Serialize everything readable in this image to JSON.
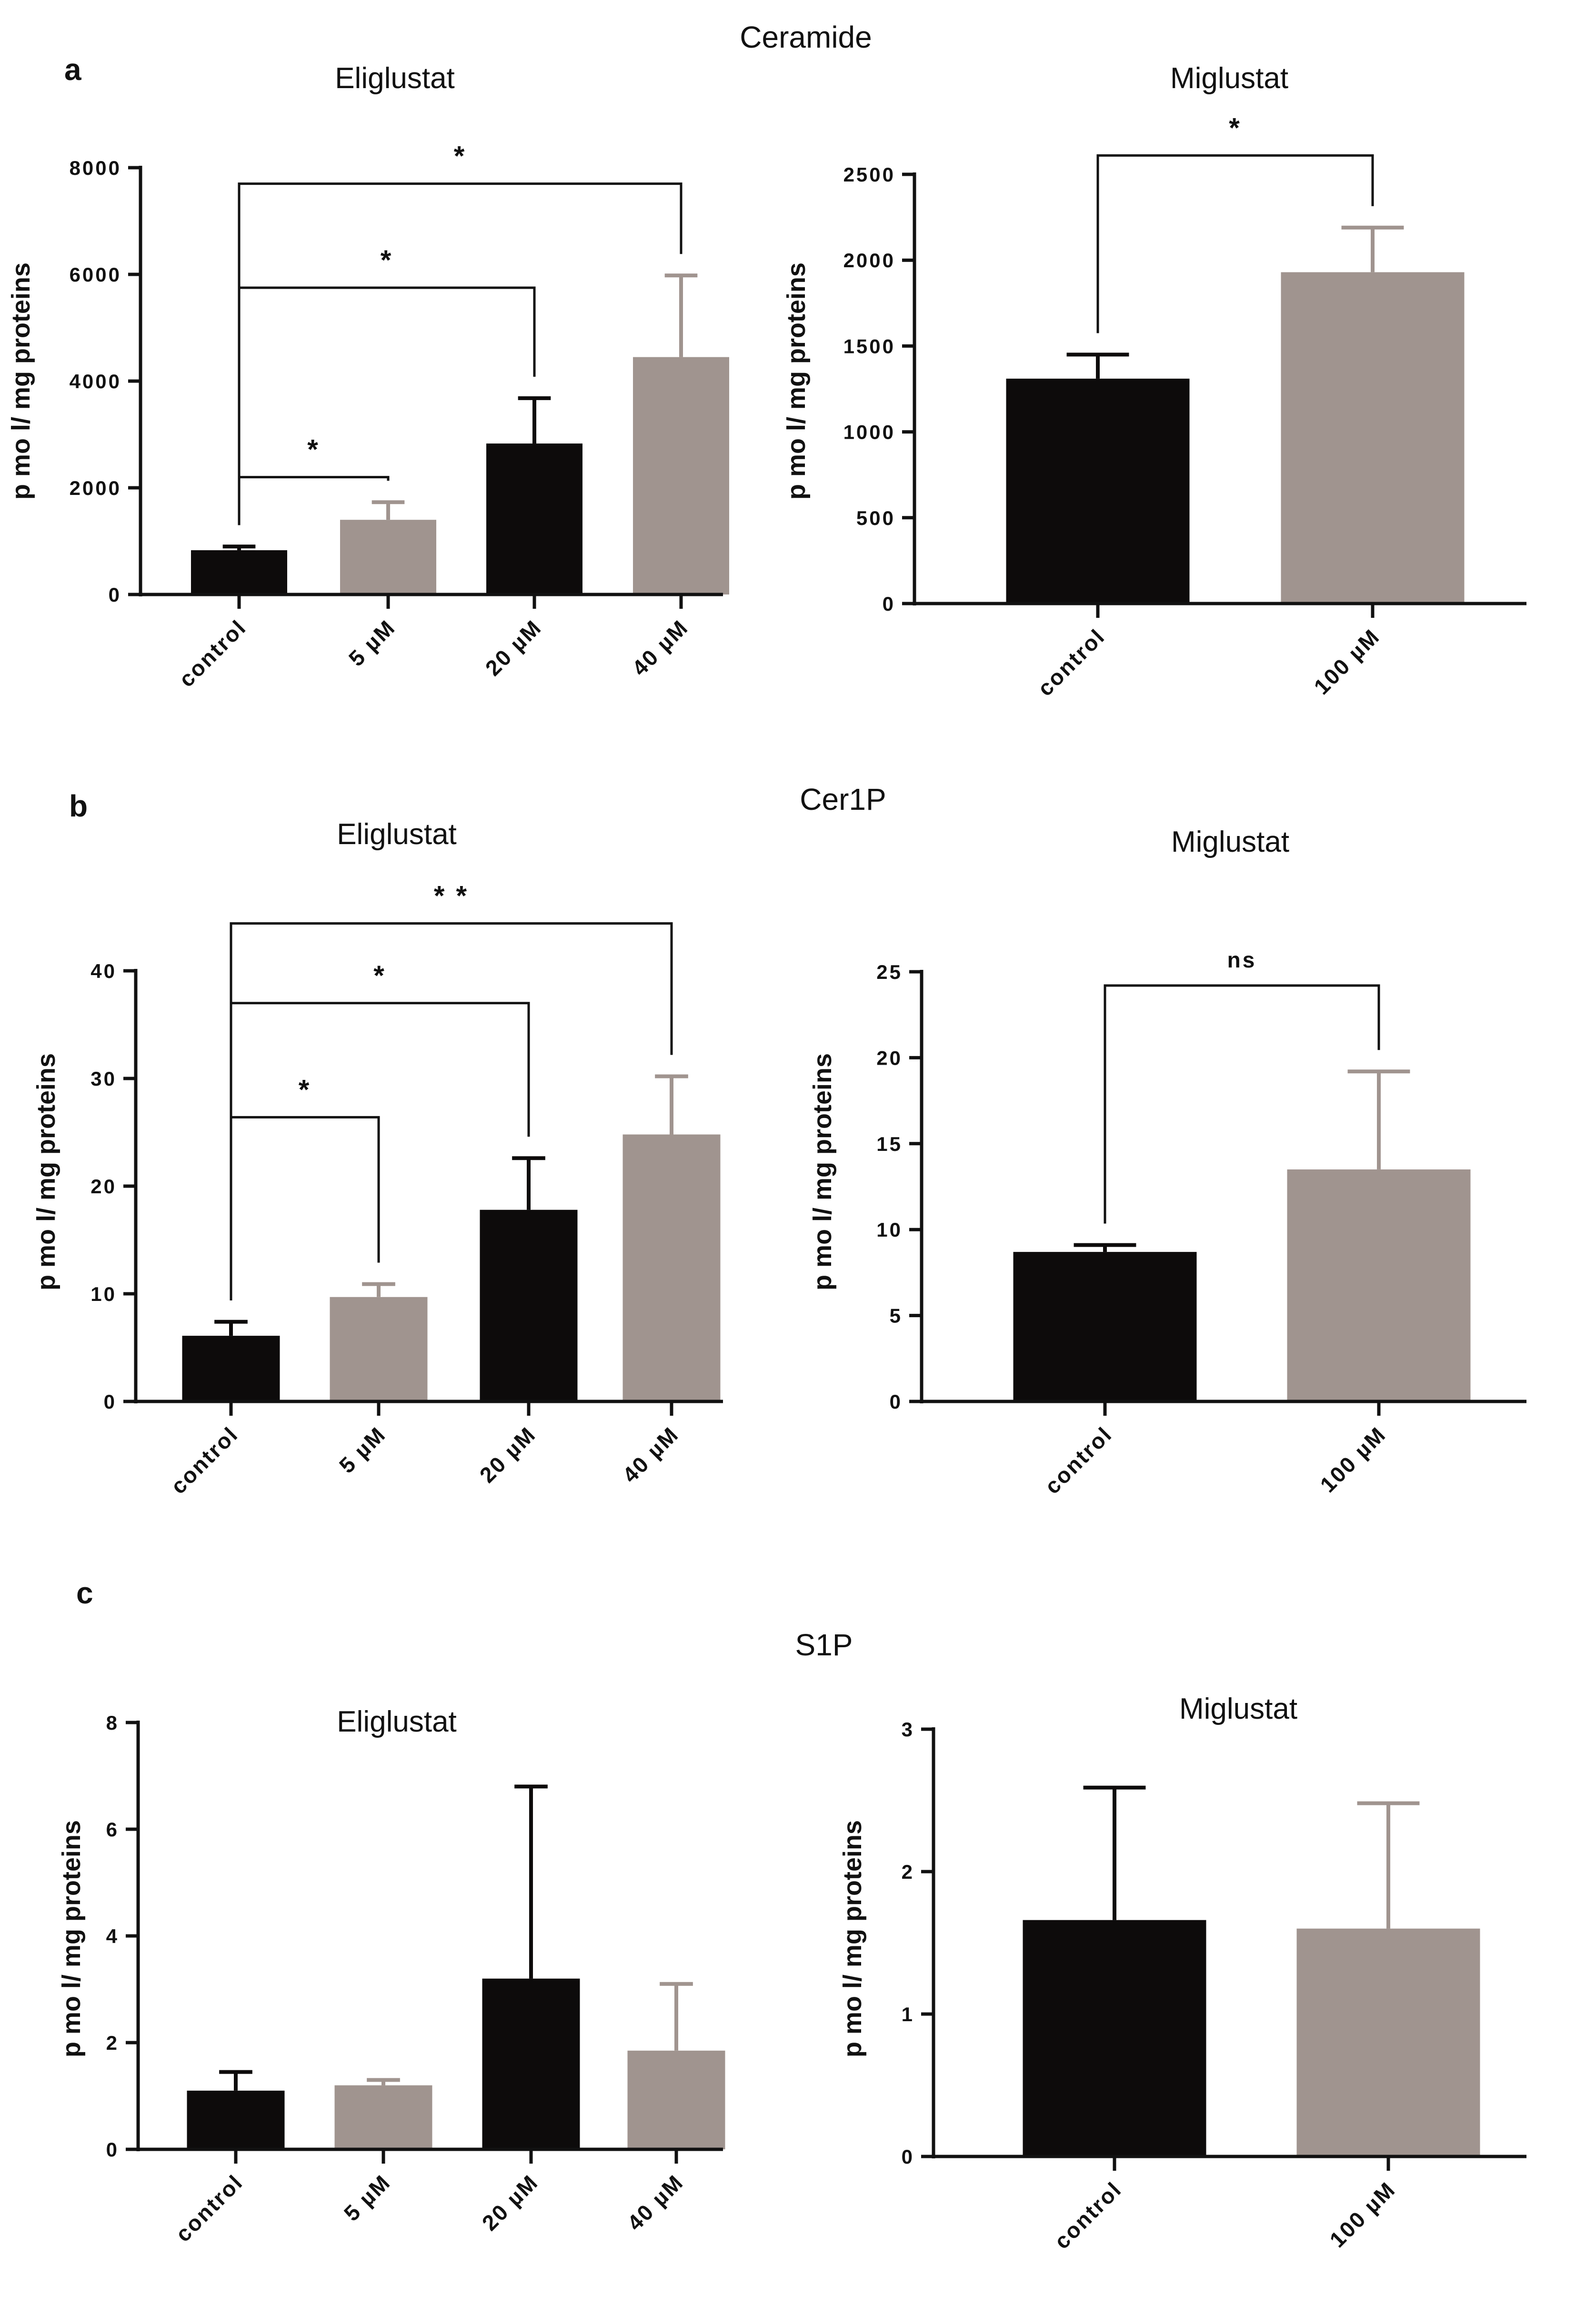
{
  "panels": [
    {
      "label": "a",
      "title": "Ceramide"
    },
    {
      "label": "b",
      "title": "Cer1P"
    },
    {
      "label": "c",
      "title": "S1P"
    }
  ],
  "colors": {
    "dark": "#0d0b0b",
    "grey": "#a0948f",
    "axis": "#111111"
  },
  "chart_data": [
    {
      "type": "bar",
      "title": "Eliglustat",
      "ylabel": "p mo l/ mg proteins",
      "categories": [
        "control",
        "5 µM",
        "20 µM",
        "40 µM"
      ],
      "values": [
        830,
        1400,
        2830,
        4450
      ],
      "errors": [
        70,
        330,
        850,
        1530
      ],
      "bar_colors": [
        "dark",
        "grey",
        "dark",
        "grey"
      ],
      "ylim": [
        0,
        8000
      ],
      "yticks": [
        {
          "v": 0,
          "l": "0"
        },
        {
          "v": 2000,
          "l": "2000"
        },
        {
          "v": 4000,
          "l": "4000"
        },
        {
          "v": 6000,
          "l": "6000"
        },
        {
          "v": 8000,
          "l": "8000"
        }
      ],
      "significance": [
        {
          "from": 0,
          "to": 1,
          "label": "*",
          "level": 2200
        },
        {
          "from": 0,
          "to": 2,
          "label": "*",
          "level": 5750
        },
        {
          "from": 0,
          "to": 3,
          "label": "*",
          "level": 7700
        }
      ]
    },
    {
      "type": "bar",
      "title": "Miglustat",
      "ylabel": "p mo l/ mg proteins",
      "categories": [
        "control",
        "100 µM"
      ],
      "values": [
        1310,
        1930
      ],
      "errors": [
        140,
        260
      ],
      "bar_colors": [
        "dark",
        "grey"
      ],
      "ylim": [
        0,
        2500
      ],
      "yticks": [
        {
          "v": 0,
          "l": "0"
        },
        {
          "v": 500,
          "l": "500"
        },
        {
          "v": 1000,
          "l": "1000"
        },
        {
          "v": 1500,
          "l": "1500"
        },
        {
          "v": 2000,
          "l": "2000"
        },
        {
          "v": 2500,
          "l": "2500"
        }
      ],
      "significance": [
        {
          "from": 0,
          "to": 1,
          "label": "*",
          "level": 2610
        }
      ]
    },
    {
      "type": "bar",
      "title": "Eliglustat",
      "ylabel": "p mo l/ mg proteins",
      "categories": [
        "control",
        "5 µM",
        "20 µM",
        "40 µM"
      ],
      "values": [
        6.1,
        9.7,
        17.8,
        24.8
      ],
      "errors": [
        1.3,
        1.2,
        4.8,
        5.4
      ],
      "bar_colors": [
        "dark",
        "grey",
        "dark",
        "grey"
      ],
      "ylim": [
        0,
        40
      ],
      "yticks": [
        {
          "v": 0,
          "l": "0"
        },
        {
          "v": 10,
          "l": "10"
        },
        {
          "v": 20,
          "l": "20"
        },
        {
          "v": 30,
          "l": "30"
        },
        {
          "v": 40,
          "l": "40"
        }
      ],
      "significance": [
        {
          "from": 0,
          "to": 1,
          "label": "*",
          "level": 26.4
        },
        {
          "from": 0,
          "to": 2,
          "label": "*",
          "level": 37.0
        },
        {
          "from": 0,
          "to": 3,
          "label": "* *",
          "level": 44.4
        }
      ]
    },
    {
      "type": "bar",
      "title": "Miglustat",
      "ylabel": "p mo l/ mg proteins",
      "categories": [
        "control",
        "100 µM"
      ],
      "values": [
        8.7,
        13.5
      ],
      "errors": [
        0.4,
        5.7
      ],
      "bar_colors": [
        "dark",
        "grey"
      ],
      "ylim": [
        0,
        25
      ],
      "yticks": [
        {
          "v": 0,
          "l": "0"
        },
        {
          "v": 5,
          "l": "5"
        },
        {
          "v": 10,
          "l": "10"
        },
        {
          "v": 15,
          "l": "15"
        },
        {
          "v": 20,
          "l": "20"
        },
        {
          "v": 25,
          "l": "25"
        }
      ],
      "significance": [
        {
          "from": 0,
          "to": 1,
          "label": "ns",
          "level": 24.2
        }
      ]
    },
    {
      "type": "bar",
      "title": "Eliglustat",
      "ylabel": "p mo l/ mg proteins",
      "categories": [
        "control",
        "5 µM",
        "20 µM",
        "40 µM"
      ],
      "values": [
        1.1,
        1.2,
        3.2,
        1.85
      ],
      "errors": [
        0.35,
        0.1,
        3.6,
        1.25
      ],
      "bar_colors": [
        "dark",
        "grey",
        "dark",
        "grey"
      ],
      "ylim": [
        0,
        8
      ],
      "yticks": [
        {
          "v": 0,
          "l": "0"
        },
        {
          "v": 2,
          "l": "2"
        },
        {
          "v": 4,
          "l": "4"
        },
        {
          "v": 6,
          "l": "6"
        },
        {
          "v": 8,
          "l": "8"
        }
      ],
      "significance": []
    },
    {
      "type": "bar",
      "title": "Miglustat",
      "ylabel": "p mo l/ mg proteins",
      "categories": [
        "control",
        "100 µM"
      ],
      "values": [
        1.66,
        1.6
      ],
      "errors": [
        0.93,
        0.88
      ],
      "bar_colors": [
        "dark",
        "grey"
      ],
      "ylim": [
        0,
        3
      ],
      "yticks": [
        {
          "v": 0,
          "l": "0"
        },
        {
          "v": 1,
          "l": "1"
        },
        {
          "v": 2,
          "l": "2"
        },
        {
          "v": 3,
          "l": "3"
        }
      ],
      "significance": []
    }
  ]
}
